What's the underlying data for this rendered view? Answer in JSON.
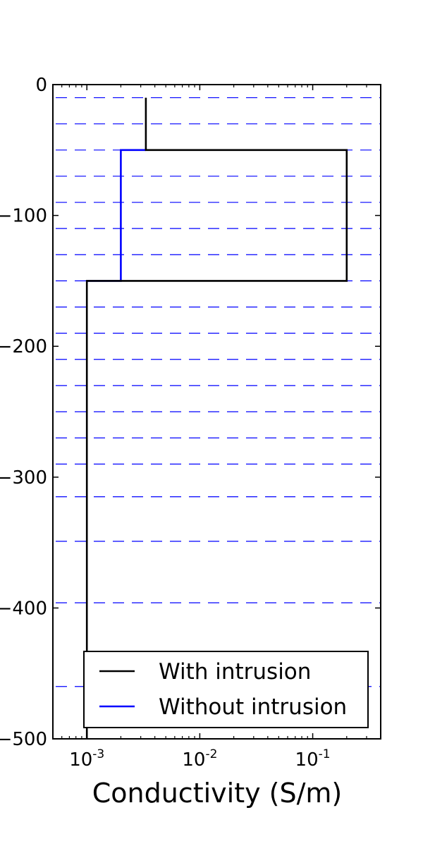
{
  "chart_data": {
    "type": "line",
    "xlabel": "Conductivity (S/m)",
    "ylabel": "",
    "x_scale": "log",
    "xlim": [
      0.0005,
      0.4
    ],
    "ylim": [
      -500,
      0
    ],
    "x_ticks": [
      {
        "value": 0.001,
        "base": "10",
        "exp": "-3"
      },
      {
        "value": 0.01,
        "base": "10",
        "exp": "-2"
      },
      {
        "value": 0.1,
        "base": "10",
        "exp": "-1"
      }
    ],
    "y_ticks": [
      0,
      -100,
      -200,
      -300,
      -400,
      -500
    ],
    "y_tick_labels": [
      "0",
      "−100",
      "−200",
      "−300",
      "−400",
      "−500"
    ],
    "layer_boundaries": [
      -10,
      -30,
      -50,
      -70,
      -90,
      -110,
      -130,
      -150,
      -170,
      -190,
      -210,
      -230,
      -250,
      -270,
      -290,
      -315,
      -349,
      -396,
      -460
    ],
    "layer_line_color": "#0000ff",
    "legend_position": "lower right",
    "series": [
      {
        "name": "With intrusion",
        "color": "#000000",
        "points": [
          [
            0.00333,
            -10
          ],
          [
            0.00333,
            -50
          ],
          [
            0.2,
            -50
          ],
          [
            0.2,
            -150
          ],
          [
            0.001,
            -150
          ],
          [
            0.001,
            -500
          ]
        ]
      },
      {
        "name": "Without intrusion",
        "color": "#0000ff",
        "points": [
          [
            0.00333,
            -50
          ],
          [
            0.002,
            -50
          ],
          [
            0.002,
            -150
          ],
          [
            0.001,
            -150
          ]
        ]
      }
    ]
  }
}
